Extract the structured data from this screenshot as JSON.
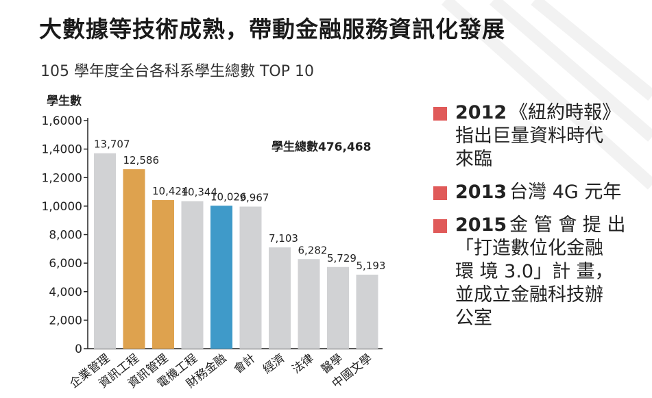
{
  "title": "大數據等技術成熟，帶動金融服務資訊化發展",
  "subtitle": "105 學年度全台各科系學生總數 TOP 10",
  "colors": {
    "gray": "#d1d2d4",
    "orange": "#dea24e",
    "blue": "#3f9ac9",
    "bullet": "#e05a59"
  },
  "chart_data": {
    "type": "bar",
    "ylabel": "學生數",
    "ylim": [
      0,
      16000
    ],
    "yticks": [
      0,
      2000,
      4000,
      6000,
      8000,
      10000,
      12000,
      14000,
      16000
    ],
    "ytick_labels": [
      "0",
      "2,000",
      "4,000",
      "6,000",
      "8,000",
      "1,0000",
      "1,2000",
      "1,4000",
      "1,6000"
    ],
    "annotation": "學生總數476,468",
    "categories": [
      "企業管理",
      "資訊工程",
      "資訊管理",
      "電機工程",
      "財務金融",
      "會計",
      "經濟",
      "法律",
      "醫學",
      "中國文學"
    ],
    "values": [
      13707,
      12586,
      10424,
      10344,
      10026,
      9967,
      7103,
      6282,
      5729,
      5193
    ],
    "value_labels": [
      "13,707",
      "12,586",
      "10,424",
      "10,344",
      "10,026",
      "9,967",
      "7,103",
      "6,282",
      "5,729",
      "5,193"
    ],
    "bar_colors": [
      "gray",
      "orange",
      "orange",
      "gray",
      "blue",
      "gray",
      "gray",
      "gray",
      "gray",
      "gray"
    ]
  },
  "notes": [
    {
      "year": "2012",
      "text": "《紐約時報》\n指出巨量資料時代\n來臨"
    },
    {
      "year": "2013",
      "text": "台灣 4G 元年"
    },
    {
      "year": "2015",
      "text": "金 管 會 提 出\n「打造數位化金融\n環 境 3.0」計 畫，\n並成立金融科技辦\n公室"
    }
  ]
}
